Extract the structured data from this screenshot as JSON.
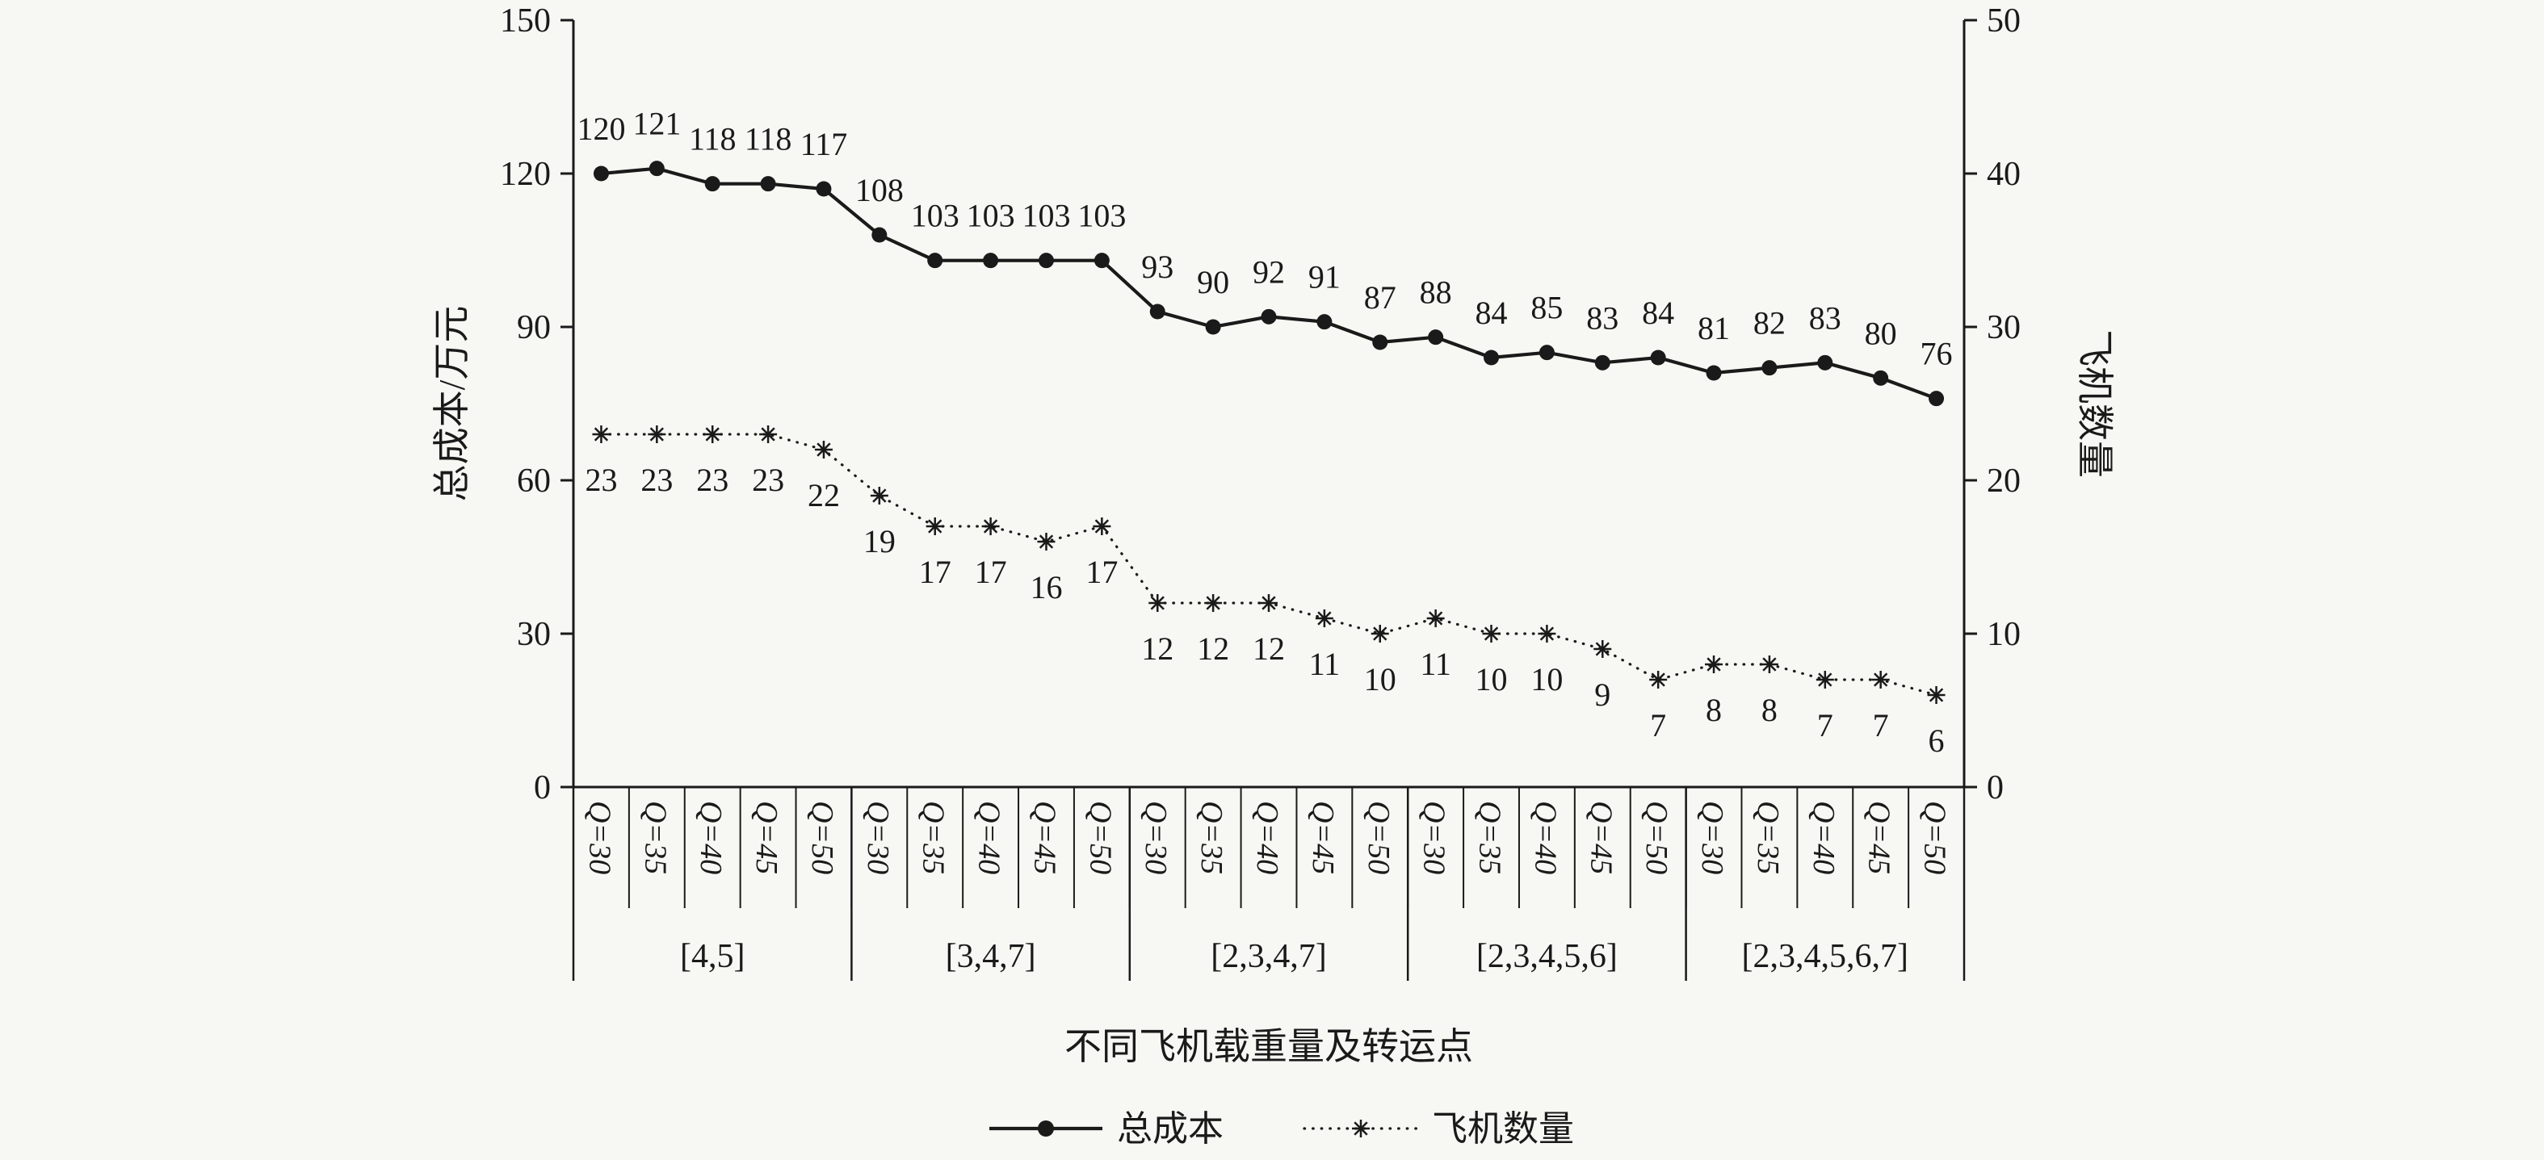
{
  "figure": {
    "background": "#f7f7f3",
    "ink": "#1a1a1a"
  },
  "chart_data": {
    "type": "line",
    "title": "",
    "x_axis_title": "不同飞机载重量及转运点",
    "left_axis": {
      "title": "总成本/万元",
      "min": 0,
      "max": 150,
      "ticks": [
        0,
        30,
        60,
        90,
        120,
        150
      ]
    },
    "right_axis": {
      "title": "飞机数量",
      "min": 0,
      "max": 50,
      "ticks": [
        0,
        10,
        20,
        30,
        40,
        50
      ]
    },
    "q_labels": [
      "Q=30",
      "Q=35",
      "Q=40",
      "Q=45",
      "Q=50"
    ],
    "groups": [
      {
        "label": "[4,5]",
        "total_cost": [
          120,
          121,
          118,
          118,
          117
        ],
        "aircraft_count": [
          23,
          23,
          23,
          23,
          22
        ]
      },
      {
        "label": "[3,4,7]",
        "total_cost": [
          108,
          103,
          103,
          103,
          103
        ],
        "aircraft_count": [
          19,
          17,
          17,
          16,
          17
        ]
      },
      {
        "label": "[2,3,4,7]",
        "total_cost": [
          93,
          90,
          92,
          91,
          87
        ],
        "aircraft_count": [
          12,
          12,
          12,
          11,
          10
        ]
      },
      {
        "label": "[2,3,4,5,6]",
        "total_cost": [
          88,
          84,
          85,
          83,
          84
        ],
        "aircraft_count": [
          11,
          10,
          10,
          9,
          7
        ]
      },
      {
        "label": "[2,3,4,5,6,7]",
        "total_cost": [
          81,
          82,
          83,
          80,
          76
        ],
        "aircraft_count": [
          8,
          8,
          7,
          7,
          6
        ]
      }
    ],
    "series": [
      {
        "name": "总成本",
        "key": "total_cost",
        "axis": "left",
        "line": "solid",
        "marker": "circle"
      },
      {
        "name": "飞机数量",
        "key": "aircraft_count",
        "axis": "right",
        "line": "dotted",
        "marker": "star"
      }
    ],
    "legend": [
      "总成本",
      "飞机数量"
    ]
  }
}
